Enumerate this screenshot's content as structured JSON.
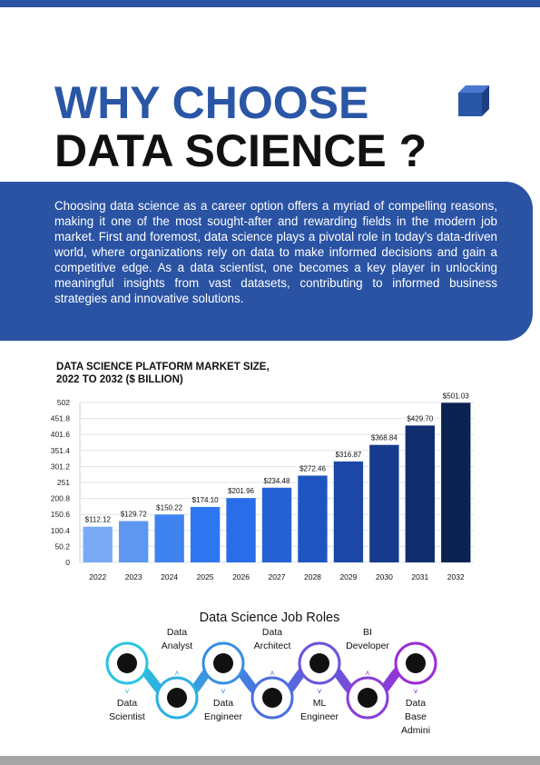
{
  "header": {
    "title_line1": "WHY CHOOSE",
    "title_line2": "DATA SCIENCE ?"
  },
  "intro": {
    "text": "Choosing data science as a career option offers a myriad of compelling reasons, making it one of the most sought-after and rewarding fields in the modern job market. First and foremost, data science plays a pivotal role in today's data-driven world, where organizations rely on data to make informed decisions and gain a competitive edge. As a data scientist, one becomes a key player in unlocking meaningful insights from vast datasets, contributing to informed business strategies and innovative solutions."
  },
  "chart_data": {
    "type": "bar",
    "title_lines": [
      "DATA SCIENCE PLATFORM  MARKET SIZE,",
      "2022 TO 2032 ($ BILLION)"
    ],
    "categories": [
      "2022",
      "2023",
      "2024",
      "2025",
      "2026",
      "2027",
      "2028",
      "2029",
      "2030",
      "2031",
      "2032"
    ],
    "values": [
      112.12,
      129.72,
      150.22,
      174.1,
      201.96,
      234.48,
      272.46,
      316.87,
      368.84,
      429.7,
      501.03
    ],
    "value_labels": [
      "$112.12",
      "$129.72",
      "$150.22",
      "$174.10",
      "$201.96",
      "$234.48",
      "$272.46",
      "$316.87",
      "$368.84",
      "$429.70",
      "$501.03"
    ],
    "colors": [
      "#7aaaf5",
      "#5e97f0",
      "#3f83f0",
      "#2f77f0",
      "#2a6de8",
      "#2462d6",
      "#1f55c0",
      "#1b48a6",
      "#163b8c",
      "#102e6e",
      "#0a2350"
    ],
    "ylim": [
      0,
      502
    ],
    "yticks": [
      0,
      50.2,
      100.4,
      150.6,
      200.8,
      251,
      301.2,
      351.4,
      401.6,
      451.8,
      502
    ],
    "grid": true
  },
  "job_roles": {
    "title": "Data Science Job Roles",
    "roles": [
      {
        "lines": [
          "Data",
          "Scientist"
        ]
      },
      {
        "lines": [
          "Data",
          "Analyst"
        ]
      },
      {
        "lines": [
          "Data",
          "Engineer"
        ]
      },
      {
        "lines": [
          "Data",
          "Architect"
        ]
      },
      {
        "lines": [
          "ML",
          "Engineer"
        ]
      },
      {
        "lines": [
          "BI",
          "Developer"
        ]
      },
      {
        "lines": [
          "Data",
          "Base",
          "Admini"
        ]
      }
    ]
  }
}
